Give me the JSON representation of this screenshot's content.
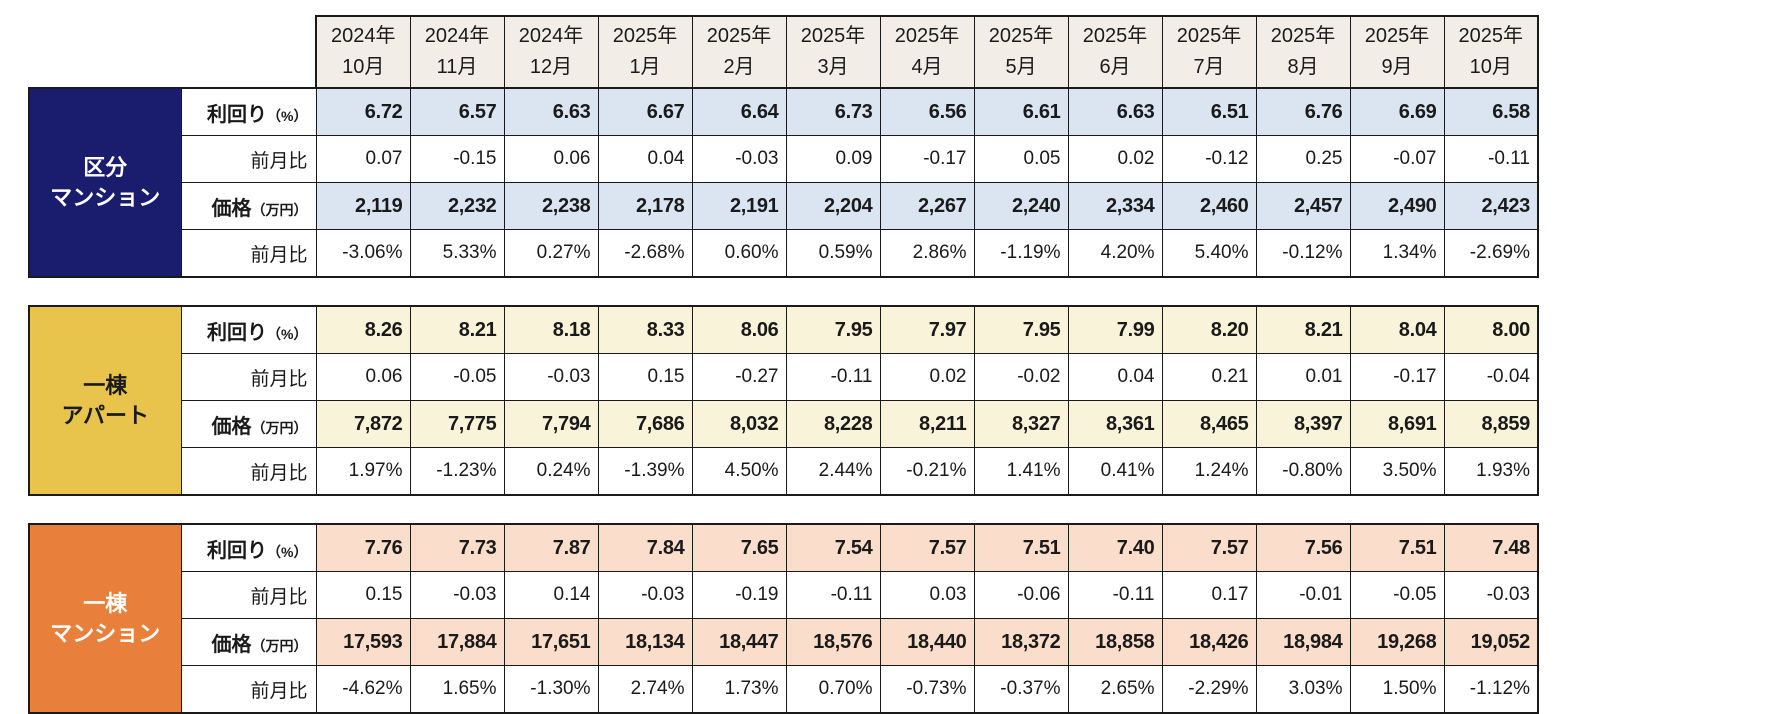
{
  "chart_data": {
    "type": "table",
    "columns": [
      {
        "year": "2024年",
        "month": "10月"
      },
      {
        "year": "2024年",
        "month": "11月"
      },
      {
        "year": "2024年",
        "month": "12月"
      },
      {
        "year": "2025年",
        "month": "1月"
      },
      {
        "year": "2025年",
        "month": "2月"
      },
      {
        "year": "2025年",
        "month": "3月"
      },
      {
        "year": "2025年",
        "month": "4月"
      },
      {
        "year": "2025年",
        "month": "5月"
      },
      {
        "year": "2025年",
        "month": "6月"
      },
      {
        "year": "2025年",
        "month": "7月"
      },
      {
        "year": "2025年",
        "month": "8月"
      },
      {
        "year": "2025年",
        "month": "9月"
      },
      {
        "year": "2025年",
        "month": "10月"
      }
    ],
    "sections": [
      {
        "id": "kubun-mansion",
        "label_lines": [
          "区分",
          "マンション"
        ],
        "colors": {
          "header_bg": "#1a1c6e",
          "header_text": "#ffffff",
          "band_bg": "#dbe5f2"
        },
        "rows": [
          {
            "label": "利回り",
            "unit": "（%）",
            "emphasis": true,
            "banded": true,
            "values": [
              "6.72",
              "6.57",
              "6.63",
              "6.67",
              "6.64",
              "6.73",
              "6.56",
              "6.61",
              "6.63",
              "6.51",
              "6.76",
              "6.69",
              "6.58"
            ]
          },
          {
            "label": "前月比",
            "unit": "",
            "emphasis": false,
            "banded": false,
            "values": [
              "0.07",
              "-0.15",
              "0.06",
              "0.04",
              "-0.03",
              "0.09",
              "-0.17",
              "0.05",
              "0.02",
              "-0.12",
              "0.25",
              "-0.07",
              "-0.11"
            ]
          },
          {
            "label": "価格",
            "unit": "（万円）",
            "emphasis": true,
            "banded": true,
            "values": [
              "2,119",
              "2,232",
              "2,238",
              "2,178",
              "2,191",
              "2,204",
              "2,267",
              "2,240",
              "2,334",
              "2,460",
              "2,457",
              "2,490",
              "2,423"
            ]
          },
          {
            "label": "前月比",
            "unit": "",
            "emphasis": false,
            "banded": false,
            "values": [
              "-3.06%",
              "5.33%",
              "0.27%",
              "-2.68%",
              "0.60%",
              "0.59%",
              "2.86%",
              "-1.19%",
              "4.20%",
              "5.40%",
              "-0.12%",
              "1.34%",
              "-2.69%"
            ]
          }
        ]
      },
      {
        "id": "itto-apart",
        "label_lines": [
          "一棟",
          "アパート"
        ],
        "colors": {
          "header_bg": "#e9c44c",
          "header_text": "#1a1a1a",
          "band_bg": "#f9f3d9"
        },
        "rows": [
          {
            "label": "利回り",
            "unit": "（%）",
            "emphasis": true,
            "banded": true,
            "values": [
              "8.26",
              "8.21",
              "8.18",
              "8.33",
              "8.06",
              "7.95",
              "7.97",
              "7.95",
              "7.99",
              "8.20",
              "8.21",
              "8.04",
              "8.00"
            ]
          },
          {
            "label": "前月比",
            "unit": "",
            "emphasis": false,
            "banded": false,
            "values": [
              "0.06",
              "-0.05",
              "-0.03",
              "0.15",
              "-0.27",
              "-0.11",
              "0.02",
              "-0.02",
              "0.04",
              "0.21",
              "0.01",
              "-0.17",
              "-0.04"
            ]
          },
          {
            "label": "価格",
            "unit": "（万円）",
            "emphasis": true,
            "banded": true,
            "values": [
              "7,872",
              "7,775",
              "7,794",
              "7,686",
              "8,032",
              "8,228",
              "8,211",
              "8,327",
              "8,361",
              "8,465",
              "8,397",
              "8,691",
              "8,859"
            ]
          },
          {
            "label": "前月比",
            "unit": "",
            "emphasis": false,
            "banded": false,
            "values": [
              "1.97%",
              "-1.23%",
              "0.24%",
              "-1.39%",
              "4.50%",
              "2.44%",
              "-0.21%",
              "1.41%",
              "0.41%",
              "1.24%",
              "-0.80%",
              "3.50%",
              "1.93%"
            ]
          }
        ]
      },
      {
        "id": "itto-mansion",
        "label_lines": [
          "一棟",
          "マンション"
        ],
        "colors": {
          "header_bg": "#e8803c",
          "header_text": "#ffffff",
          "band_bg": "#fadecb"
        },
        "rows": [
          {
            "label": "利回り",
            "unit": "（%）",
            "emphasis": true,
            "banded": true,
            "values": [
              "7.76",
              "7.73",
              "7.87",
              "7.84",
              "7.65",
              "7.54",
              "7.57",
              "7.51",
              "7.40",
              "7.57",
              "7.56",
              "7.51",
              "7.48"
            ]
          },
          {
            "label": "前月比",
            "unit": "",
            "emphasis": false,
            "banded": false,
            "values": [
              "0.15",
              "-0.03",
              "0.14",
              "-0.03",
              "-0.19",
              "-0.11",
              "0.03",
              "-0.06",
              "-0.11",
              "0.17",
              "-0.01",
              "-0.05",
              "-0.03"
            ]
          },
          {
            "label": "価格",
            "unit": "（万円）",
            "emphasis": true,
            "banded": true,
            "values": [
              "17,593",
              "17,884",
              "17,651",
              "18,134",
              "18,447",
              "18,576",
              "18,440",
              "18,372",
              "18,858",
              "18,426",
              "18,984",
              "19,268",
              "19,052"
            ]
          },
          {
            "label": "前月比",
            "unit": "",
            "emphasis": false,
            "banded": false,
            "values": [
              "-4.62%",
              "1.65%",
              "-1.30%",
              "2.74%",
              "1.73%",
              "0.70%",
              "-0.73%",
              "-0.37%",
              "2.65%",
              "-2.29%",
              "3.03%",
              "1.50%",
              "-1.12%"
            ]
          }
        ]
      }
    ],
    "colors": {
      "month_header_bg": "#f2eee7",
      "border": "#1a1a1a",
      "page_bg": "#ffffff"
    }
  }
}
